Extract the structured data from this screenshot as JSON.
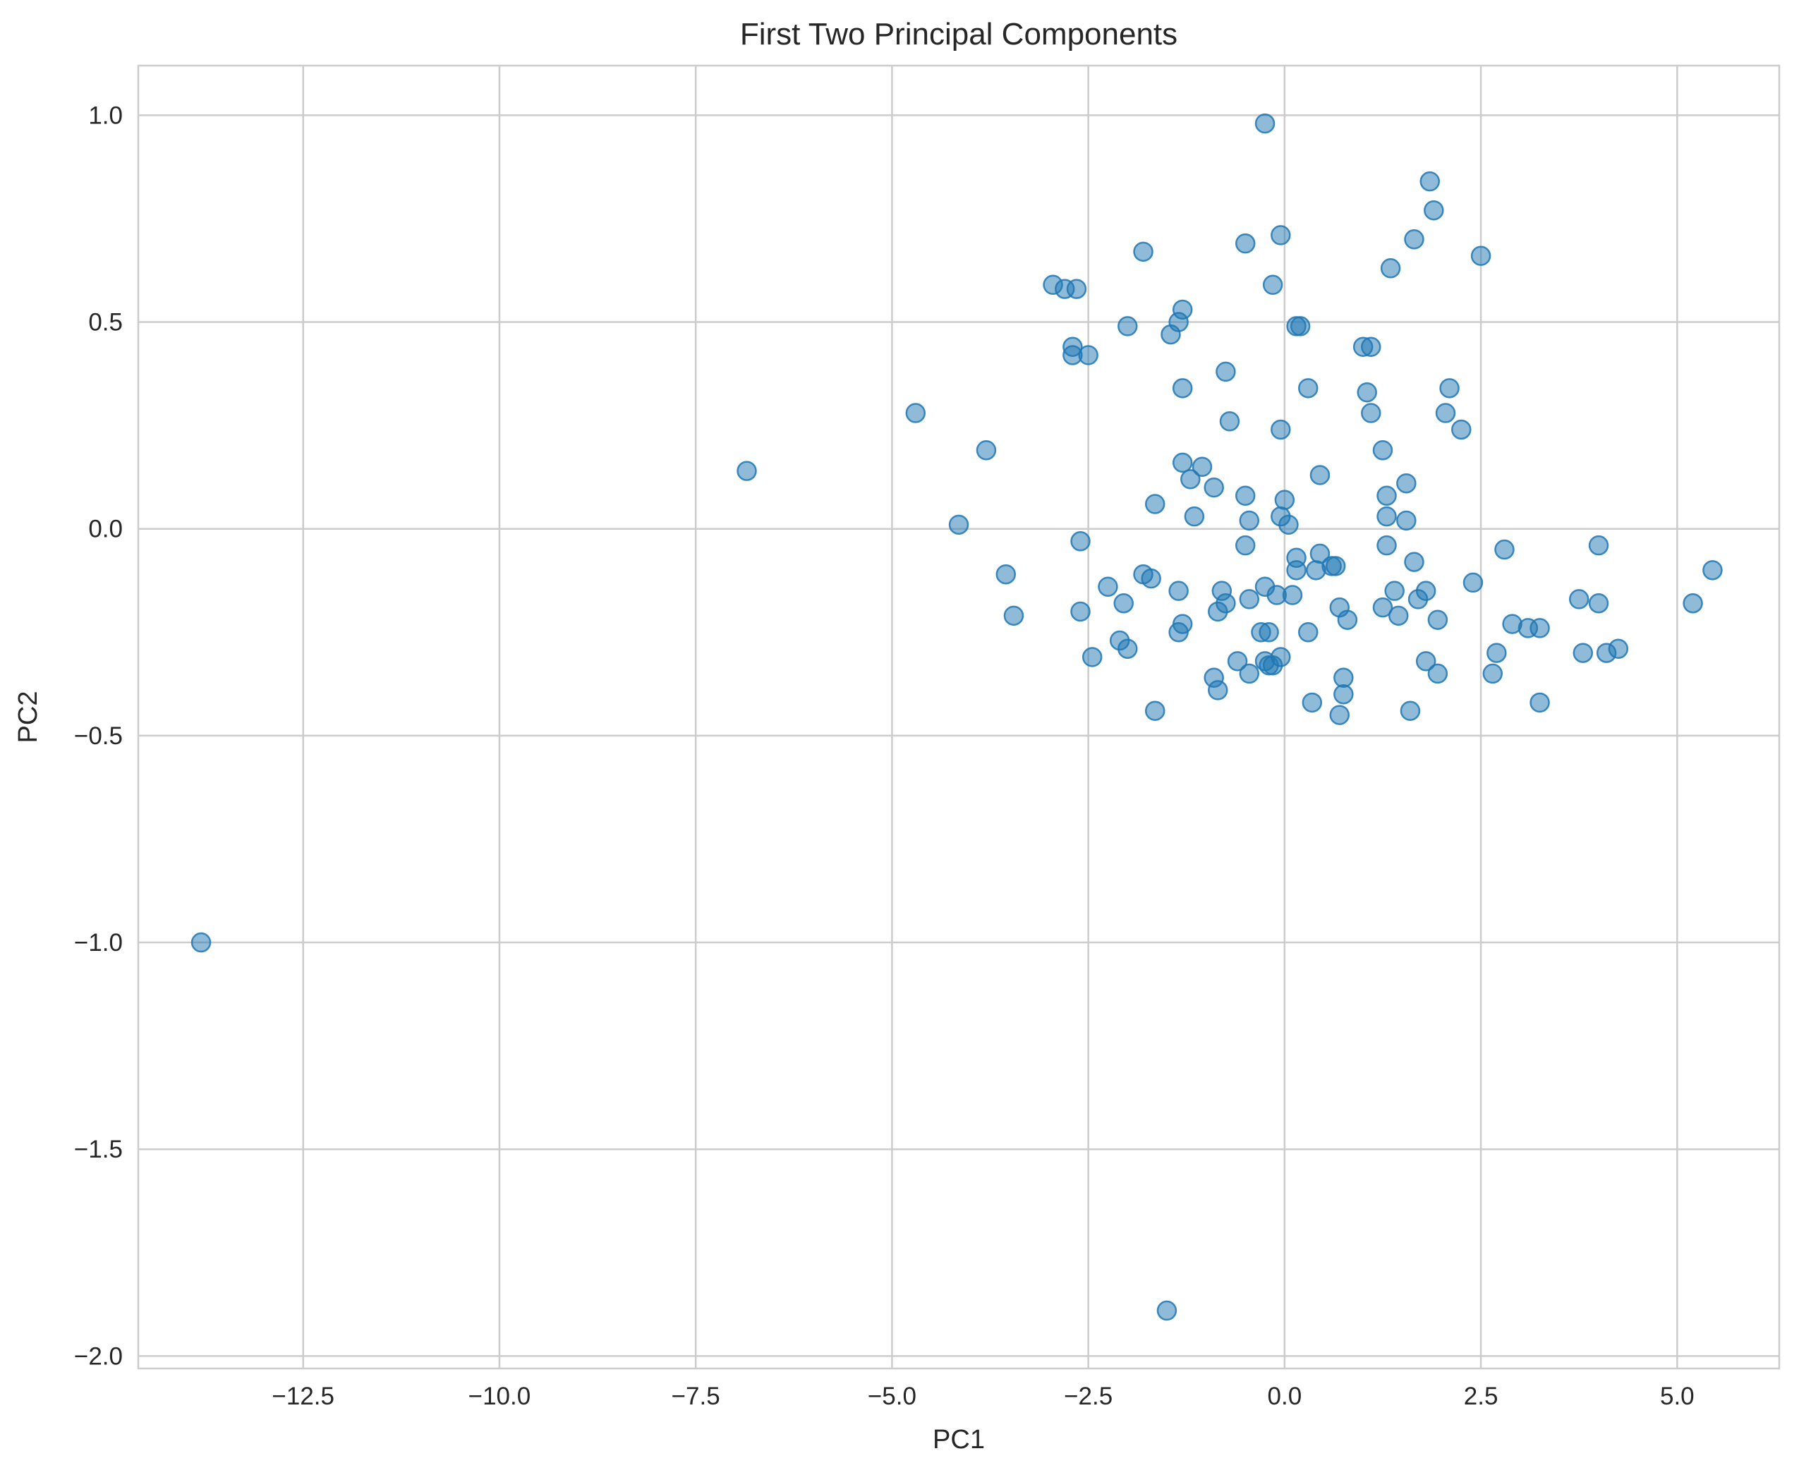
{
  "chart_data": {
    "type": "scatter",
    "title": "First Two Principal Components",
    "xlabel": "PC1",
    "ylabel": "PC2",
    "xlim": [
      -14.6,
      6.3
    ],
    "ylim": [
      -2.03,
      1.12
    ],
    "xticks": [
      -12.5,
      -10.0,
      -7.5,
      -5.0,
      -2.5,
      0.0,
      2.5,
      5.0
    ],
    "xtick_labels": [
      "−12.5",
      "−10.0",
      "−7.5",
      "−5.0",
      "−2.5",
      "0.0",
      "2.5",
      "5.0"
    ],
    "yticks": [
      1.0,
      0.5,
      0.0,
      -0.5,
      -1.0,
      -1.5,
      -2.0
    ],
    "ytick_labels": [
      "1.0",
      "0.5",
      "0.0",
      "−0.5",
      "−1.0",
      "−1.5",
      "−2.0"
    ],
    "grid": true,
    "legend": false,
    "color": "#1f77b4",
    "alpha": 0.5,
    "points": [
      [
        -13.8,
        -1.0
      ],
      [
        -6.85,
        0.14
      ],
      [
        -4.7,
        0.28
      ],
      [
        -4.15,
        0.01
      ],
      [
        -3.8,
        0.19
      ],
      [
        -3.55,
        -0.11
      ],
      [
        -3.45,
        -0.21
      ],
      [
        -2.95,
        0.59
      ],
      [
        -2.8,
        0.58
      ],
      [
        -2.7,
        0.44
      ],
      [
        -2.7,
        0.42
      ],
      [
        -2.65,
        0.58
      ],
      [
        -2.6,
        -0.03
      ],
      [
        -2.6,
        -0.2
      ],
      [
        -2.5,
        0.42
      ],
      [
        -2.45,
        -0.31
      ],
      [
        -2.25,
        -0.14
      ],
      [
        -2.1,
        -0.27
      ],
      [
        -2.05,
        -0.18
      ],
      [
        -2.0,
        0.49
      ],
      [
        -2.0,
        -0.29
      ],
      [
        -1.8,
        0.67
      ],
      [
        -1.8,
        -0.11
      ],
      [
        -1.7,
        -0.12
      ],
      [
        -1.65,
        0.06
      ],
      [
        -1.65,
        -0.44
      ],
      [
        -1.5,
        -1.89
      ],
      [
        -1.45,
        0.47
      ],
      [
        -1.35,
        0.5
      ],
      [
        -1.35,
        -0.15
      ],
      [
        -1.35,
        -0.25
      ],
      [
        -1.3,
        0.53
      ],
      [
        -1.3,
        0.34
      ],
      [
        -1.3,
        0.16
      ],
      [
        -1.3,
        -0.23
      ],
      [
        -1.2,
        0.12
      ],
      [
        -1.15,
        0.03
      ],
      [
        -1.05,
        0.15
      ],
      [
        -0.9,
        0.1
      ],
      [
        -0.9,
        -0.36
      ],
      [
        -0.85,
        -0.2
      ],
      [
        -0.85,
        -0.39
      ],
      [
        -0.8,
        -0.15
      ],
      [
        -0.75,
        0.38
      ],
      [
        -0.75,
        -0.18
      ],
      [
        -0.7,
        0.26
      ],
      [
        -0.6,
        -0.32
      ],
      [
        -0.5,
        0.69
      ],
      [
        -0.5,
        0.08
      ],
      [
        -0.5,
        -0.04
      ],
      [
        -0.45,
        0.02
      ],
      [
        -0.45,
        -0.17
      ],
      [
        -0.45,
        -0.35
      ],
      [
        -0.3,
        -0.25
      ],
      [
        -0.25,
        0.98
      ],
      [
        -0.25,
        -0.14
      ],
      [
        -0.25,
        -0.32
      ],
      [
        -0.2,
        -0.25
      ],
      [
        -0.2,
        -0.33
      ],
      [
        -0.15,
        0.59
      ],
      [
        -0.15,
        -0.33
      ],
      [
        -0.1,
        -0.16
      ],
      [
        -0.05,
        0.71
      ],
      [
        -0.05,
        0.24
      ],
      [
        -0.05,
        0.03
      ],
      [
        -0.05,
        -0.31
      ],
      [
        0.0,
        0.07
      ],
      [
        0.05,
        0.01
      ],
      [
        0.1,
        -0.16
      ],
      [
        0.15,
        0.49
      ],
      [
        0.15,
        -0.07
      ],
      [
        0.15,
        -0.1
      ],
      [
        0.2,
        0.49
      ],
      [
        0.3,
        0.34
      ],
      [
        0.3,
        -0.25
      ],
      [
        0.35,
        -0.42
      ],
      [
        0.4,
        -0.1
      ],
      [
        0.45,
        0.13
      ],
      [
        0.45,
        -0.06
      ],
      [
        0.6,
        -0.09
      ],
      [
        0.65,
        -0.09
      ],
      [
        0.7,
        -0.19
      ],
      [
        0.7,
        -0.45
      ],
      [
        0.75,
        -0.36
      ],
      [
        0.75,
        -0.4
      ],
      [
        0.8,
        -0.22
      ],
      [
        1.0,
        0.44
      ],
      [
        1.05,
        0.33
      ],
      [
        1.1,
        0.44
      ],
      [
        1.1,
        0.28
      ],
      [
        1.25,
        0.19
      ],
      [
        1.25,
        -0.19
      ],
      [
        1.3,
        0.08
      ],
      [
        1.3,
        0.03
      ],
      [
        1.3,
        -0.04
      ],
      [
        1.35,
        0.63
      ],
      [
        1.4,
        -0.15
      ],
      [
        1.45,
        -0.21
      ],
      [
        1.55,
        0.11
      ],
      [
        1.55,
        0.02
      ],
      [
        1.6,
        -0.44
      ],
      [
        1.65,
        0.7
      ],
      [
        1.65,
        -0.08
      ],
      [
        1.7,
        -0.17
      ],
      [
        1.8,
        -0.15
      ],
      [
        1.8,
        -0.32
      ],
      [
        1.85,
        0.84
      ],
      [
        1.9,
        0.77
      ],
      [
        1.95,
        -0.22
      ],
      [
        1.95,
        -0.35
      ],
      [
        2.05,
        0.28
      ],
      [
        2.1,
        0.34
      ],
      [
        2.25,
        0.24
      ],
      [
        2.4,
        -0.13
      ],
      [
        2.5,
        0.66
      ],
      [
        2.65,
        -0.35
      ],
      [
        2.7,
        -0.3
      ],
      [
        2.8,
        -0.05
      ],
      [
        2.9,
        -0.23
      ],
      [
        3.1,
        -0.24
      ],
      [
        3.25,
        -0.24
      ],
      [
        3.25,
        -0.42
      ],
      [
        3.75,
        -0.17
      ],
      [
        3.8,
        -0.3
      ],
      [
        4.0,
        -0.04
      ],
      [
        4.0,
        -0.18
      ],
      [
        4.1,
        -0.3
      ],
      [
        4.25,
        -0.29
      ],
      [
        5.2,
        -0.18
      ],
      [
        5.45,
        -0.1
      ]
    ]
  }
}
